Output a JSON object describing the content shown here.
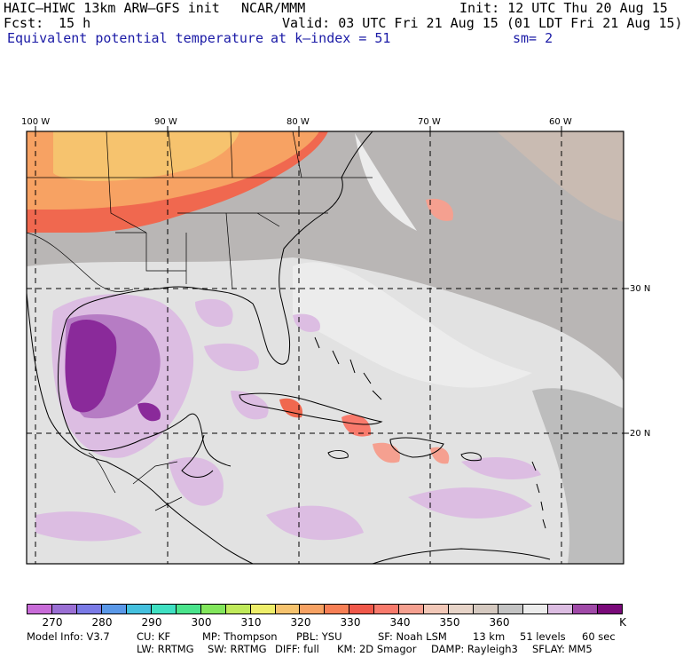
{
  "header": {
    "model": "HAIC–HIWC 13km ARW–GFS init",
    "center": "NCAR/MMM",
    "init": "Init: 12 UTC Thu 20 Aug 15",
    "fcst_label": "Fcst:",
    "fcst_value": "15 h",
    "valid": "Valid: 03 UTC Fri 21 Aug 15 (01 LDT Fri 21 Aug 15)",
    "field": "Equivalent potential temperature",
    "level": "at k–index =  51",
    "smooth": "sm= 2"
  },
  "map": {
    "lon_labels": [
      "100 W",
      "90 W",
      "80 W",
      "70 W",
      "60 W"
    ],
    "lat_labels": [
      "30 N",
      "20 N"
    ],
    "colors": {
      "frame": "#000000",
      "grid": "#000000",
      "background_field": "#a9a9a9",
      "ocean_light": "#ececec",
      "warm_high": "#f0684f",
      "warm_mid": "#f7a263",
      "warm_low": "#f6c36e",
      "cool_lilac": "#dcbde2",
      "cool_mid": "#a25cb8",
      "cool_deep": "#8a2a9a"
    }
  },
  "colorbar": {
    "colors": [
      "#c86bd8",
      "#9a6fd4",
      "#7a7ae6",
      "#5a98e8",
      "#44c0de",
      "#3fe0c2",
      "#4ae48c",
      "#82e65c",
      "#c0ea5a",
      "#eeee6a",
      "#f6c36e",
      "#f7a263",
      "#f77f55",
      "#f0584a",
      "#f87a6c",
      "#f5a090",
      "#f2c8b8",
      "#e7d4c8",
      "#d5c9c0",
      "#c3c3c3",
      "#ececec",
      "#dcbde2",
      "#a04aa8",
      "#7a0a7a"
    ],
    "labels": [
      "270",
      "280",
      "290",
      "300",
      "310",
      "320",
      "330",
      "340",
      "350",
      "360"
    ],
    "unit": "K"
  },
  "model_info": {
    "line1": [
      "Model Info: V3.7",
      "CU: KF",
      "MP: Thompson",
      "PBL: YSU",
      "SF: Noah LSM",
      "13 km",
      "51 levels",
      "60 sec"
    ],
    "line2": [
      "LW: RRTMG",
      "SW: RRTMG",
      "DIFF: full",
      "KM: 2D Smagor",
      "DAMP: Rayleigh3",
      "SFLAY: MM5"
    ]
  }
}
